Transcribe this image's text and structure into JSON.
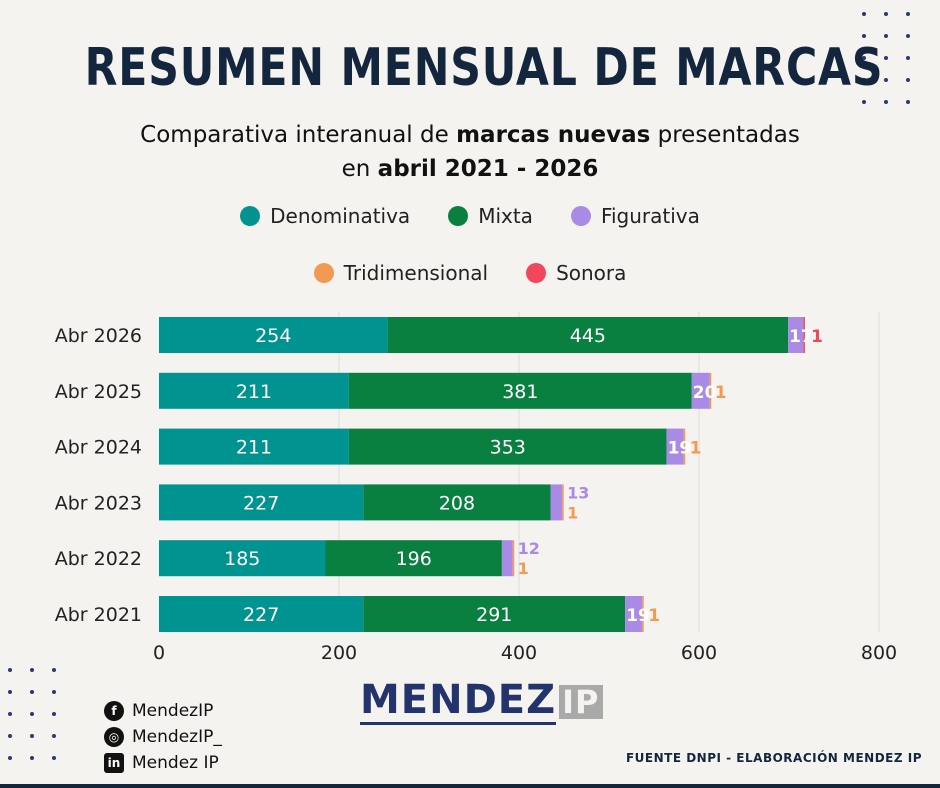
{
  "header": {
    "title": "RESUMEN MENSUAL DE MARCAS",
    "subtitle_part1": "Comparativa interanual de ",
    "subtitle_bold1": "marcas nuevas",
    "subtitle_part2": "  presentadas",
    "subtitle_part3": "en ",
    "subtitle_bold2": "abril 2021 - 2026"
  },
  "chart_data": {
    "type": "bar",
    "orientation": "horizontal",
    "stacked": true,
    "categories": [
      "Abr 2026",
      "Abr 2025",
      "Abr 2024",
      "Abr 2023",
      "Abr 2022",
      "Abr 2021"
    ],
    "series": [
      {
        "name": "Denominativa",
        "color": "#00938f",
        "values": [
          254,
          211,
          211,
          227,
          185,
          227
        ]
      },
      {
        "name": "Mixta",
        "color": "#0a8040",
        "values": [
          445,
          381,
          353,
          208,
          196,
          291
        ]
      },
      {
        "name": "Figurativa",
        "color": "#a98be6",
        "values": [
          17,
          20,
          19,
          13,
          12,
          19
        ]
      },
      {
        "name": "Tridimensional",
        "color": "#f39a52",
        "values": [
          0,
          1,
          1,
          1,
          1,
          1
        ]
      },
      {
        "name": "Sonora",
        "color": "#f0475a",
        "values": [
          1,
          0,
          0,
          0,
          0,
          0
        ]
      }
    ],
    "xlim": [
      0,
      800
    ],
    "xticks": [
      "0",
      "200",
      "400",
      "600",
      "800"
    ],
    "grid": true,
    "legend_position": "top"
  },
  "social": [
    {
      "icon": "facebook-icon",
      "glyph": "f",
      "label": "MendezIP"
    },
    {
      "icon": "instagram-icon",
      "glyph": "◎",
      "label": "MendezIP_"
    },
    {
      "icon": "linkedin-icon",
      "glyph": "in",
      "label": "Mendez IP"
    }
  ],
  "brand": {
    "main": "MENDEZ",
    "suffix": "IP"
  },
  "footer": {
    "source": "FUENTE DNPI - ELABORACIÓN MENDEZ IP"
  }
}
